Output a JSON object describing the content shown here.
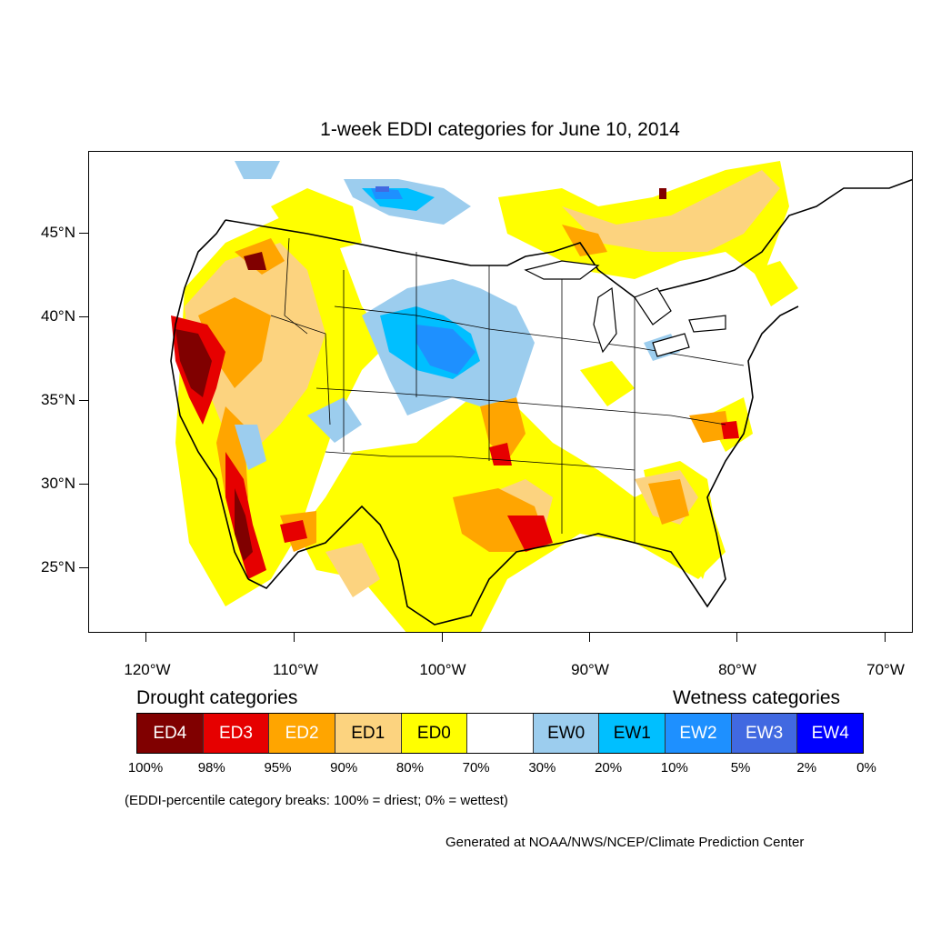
{
  "title": "1-week EDDI categories for June 10, 2014",
  "map": {
    "latitude_labels": [
      {
        "text": "45°N",
        "lat": 45
      },
      {
        "text": "40°N",
        "lat": 40
      },
      {
        "text": "35°N",
        "lat": 35
      },
      {
        "text": "30°N",
        "lat": 30
      },
      {
        "text": "25°N",
        "lat": 25
      }
    ],
    "longitude_labels": [
      {
        "text": "120°W",
        "lon": -120
      },
      {
        "text": "110°W",
        "lon": -110
      },
      {
        "text": "100°W",
        "lon": -100
      },
      {
        "text": "90°W",
        "lon": -90
      },
      {
        "text": "80°W",
        "lon": -80
      },
      {
        "text": "70°W",
        "lon": -70
      }
    ]
  },
  "legend": {
    "drought_heading": "Drought categories",
    "wetness_heading": "Wetness categories",
    "categories": [
      {
        "label": "ED4",
        "color": "#800000",
        "text_color": "#ffffff"
      },
      {
        "label": "ED3",
        "color": "#e60000",
        "text_color": "#ffffff"
      },
      {
        "label": "ED2",
        "color": "#ffa500",
        "text_color": "#ffffff"
      },
      {
        "label": "ED1",
        "color": "#fcd37f",
        "text_color": "#000000"
      },
      {
        "label": "ED0",
        "color": "#ffff00",
        "text_color": "#000000"
      },
      {
        "label": "",
        "color": "#ffffff",
        "text_color": "#000000"
      },
      {
        "label": "EW0",
        "color": "#9ccdee",
        "text_color": "#000000"
      },
      {
        "label": "EW1",
        "color": "#00bfff",
        "text_color": "#000000"
      },
      {
        "label": "EW2",
        "color": "#1e90ff",
        "text_color": "#ffffff"
      },
      {
        "label": "EW3",
        "color": "#4169e1",
        "text_color": "#ffffff"
      },
      {
        "label": "EW4",
        "color": "#0000ff",
        "text_color": "#ffffff"
      }
    ],
    "percentiles": [
      "100%",
      "98%",
      "95%",
      "90%",
      "80%",
      "70%",
      "30%",
      "20%",
      "10%",
      "5%",
      "2%",
      "0%"
    ]
  },
  "note": "(EDDI-percentile category breaks: 100% = driest; 0% = wettest)",
  "credit": "Generated at NOAA/NWS/NCEP/Climate Prediction Center"
}
